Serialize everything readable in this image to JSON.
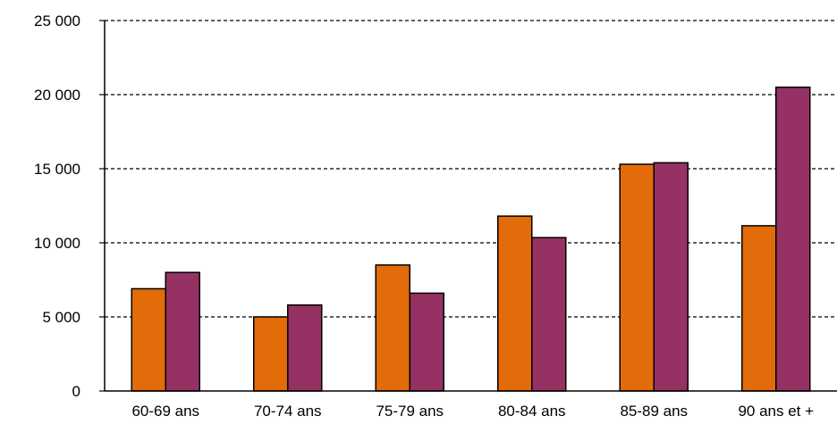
{
  "chart_data": {
    "type": "bar",
    "categories": [
      "60-69 ans",
      "70-74 ans",
      "75-79 ans",
      "80-84 ans",
      "85-89 ans",
      "90 ans et +"
    ],
    "series": [
      {
        "values": [
          6900,
          5000,
          8500,
          11800,
          15300,
          11150
        ],
        "color": "#e36c0a"
      },
      {
        "values": [
          8000,
          5800,
          6600,
          10350,
          15400,
          20500
        ],
        "color": "#953163"
      }
    ],
    "yticks": [
      0,
      5000,
      10000,
      15000,
      20000,
      25000
    ],
    "ytick_labels": [
      "0",
      "5 000",
      "10 000",
      "15 000",
      "20 000",
      "25 000"
    ],
    "ylim": [
      0,
      25000
    ],
    "grid": true,
    "grid_style": "dashed",
    "legend": "none"
  }
}
